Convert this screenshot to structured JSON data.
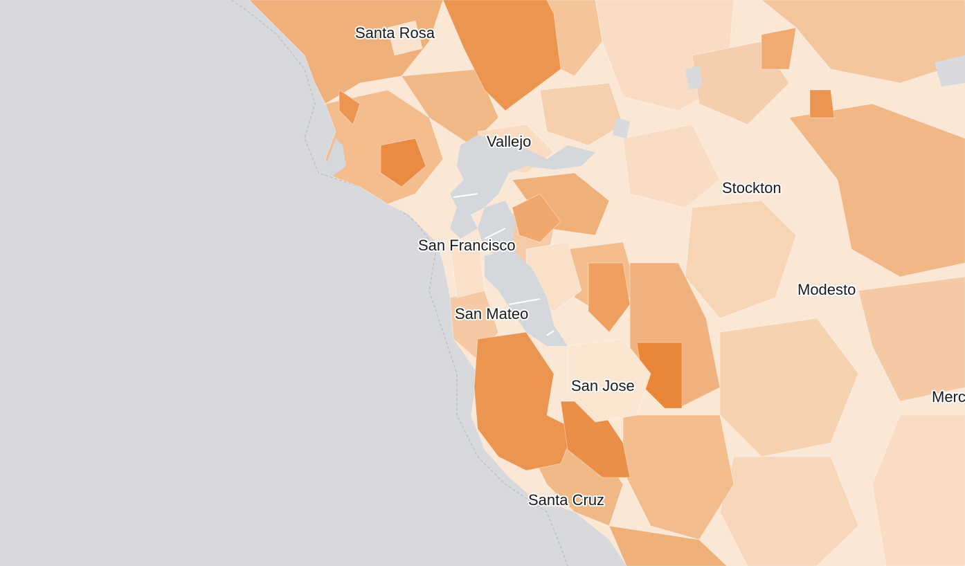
{
  "map": {
    "colors": {
      "ocean": "#d7d9dc",
      "water": "#d4d7dc",
      "land_lightest": "#fbe7d5",
      "land_light": "#f6d2b0",
      "land_mid": "#f0b27e",
      "land_dark": "#ec9550",
      "land_darkest": "#e98637"
    },
    "cities": [
      {
        "id": "santa-rosa",
        "name": "Santa Rosa"
      },
      {
        "id": "vallejo",
        "name": "Vallejo"
      },
      {
        "id": "stockton",
        "name": "Stockton"
      },
      {
        "id": "san-francisco",
        "name": "San Francisco"
      },
      {
        "id": "modesto",
        "name": "Modesto"
      },
      {
        "id": "san-mateo",
        "name": "San Mateo"
      },
      {
        "id": "san-jose",
        "name": "San Jose"
      },
      {
        "id": "merced",
        "name": "Merc"
      },
      {
        "id": "santa-cruz",
        "name": "Santa Cruz"
      }
    ]
  }
}
